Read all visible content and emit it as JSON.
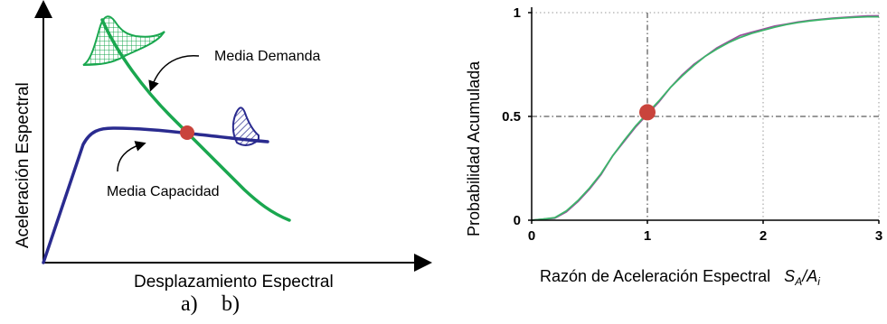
{
  "chart_data": [
    {
      "type": "diagram-curves",
      "xlabel": "Desplazamiento Espectral",
      "ylabel": "Aceleración Espectral",
      "annotations": [
        "Media Demanda",
        "Media Capacidad"
      ],
      "subfigure_label": "a)",
      "colors": {
        "capacity": "#2a2b8f",
        "demand": "#1aa74f",
        "point": "#c9443c",
        "axis": "#000000"
      }
    },
    {
      "type": "line",
      "xlabel_text": "Razón de Aceleración Espectral",
      "xlabel_sym": {
        "s": "S",
        "s_sub": "A",
        "slash": "/",
        "a": "A",
        "a_sub": "i"
      },
      "ylabel": "Probabilidad Acumulada",
      "xlim": [
        0,
        3
      ],
      "ylim": [
        0,
        1
      ],
      "xticks": [
        "0",
        "1",
        "2",
        "3"
      ],
      "yticks": [
        "0",
        "0.5",
        "1"
      ],
      "grid": true,
      "series": [
        {
          "color": "#9b4f9e",
          "x": [
            0.0,
            0.1,
            0.2,
            0.3,
            0.4,
            0.5,
            0.6,
            0.7,
            0.8,
            0.9,
            1.0,
            1.1,
            1.2,
            1.3,
            1.4,
            1.5,
            1.6,
            1.7,
            1.8,
            1.9,
            2.0,
            2.1,
            2.2,
            2.3,
            2.4,
            2.5,
            2.6,
            2.7,
            2.8,
            2.9,
            3.0
          ],
          "y": [
            0.0,
            0.005,
            0.01,
            0.04,
            0.09,
            0.15,
            0.22,
            0.31,
            0.38,
            0.45,
            0.51,
            0.57,
            0.64,
            0.7,
            0.75,
            0.79,
            0.83,
            0.86,
            0.89,
            0.905,
            0.92,
            0.935,
            0.945,
            0.955,
            0.962,
            0.968,
            0.973,
            0.977,
            0.981,
            0.984,
            0.985
          ]
        },
        {
          "color": "#3cb46a",
          "x": [
            0.0,
            0.1,
            0.2,
            0.3,
            0.4,
            0.5,
            0.6,
            0.7,
            0.8,
            0.9,
            1.0,
            1.1,
            1.2,
            1.3,
            1.4,
            1.5,
            1.6,
            1.7,
            1.8,
            1.9,
            2.0,
            2.1,
            2.2,
            2.3,
            2.4,
            2.5,
            2.6,
            2.7,
            2.8,
            2.9,
            3.0
          ],
          "y": [
            0.0,
            0.005,
            0.012,
            0.045,
            0.095,
            0.155,
            0.225,
            0.31,
            0.385,
            0.455,
            0.515,
            0.575,
            0.64,
            0.695,
            0.745,
            0.79,
            0.825,
            0.855,
            0.88,
            0.9,
            0.915,
            0.93,
            0.942,
            0.952,
            0.96,
            0.966,
            0.971,
            0.975,
            0.978,
            0.98,
            0.98
          ]
        }
      ],
      "highlight_point": {
        "x": 1.0,
        "y": 0.52,
        "color": "#c9443c"
      },
      "reference_lines": {
        "x": 1.0,
        "y": 0.5
      },
      "subfigure_label": "b)"
    }
  ]
}
